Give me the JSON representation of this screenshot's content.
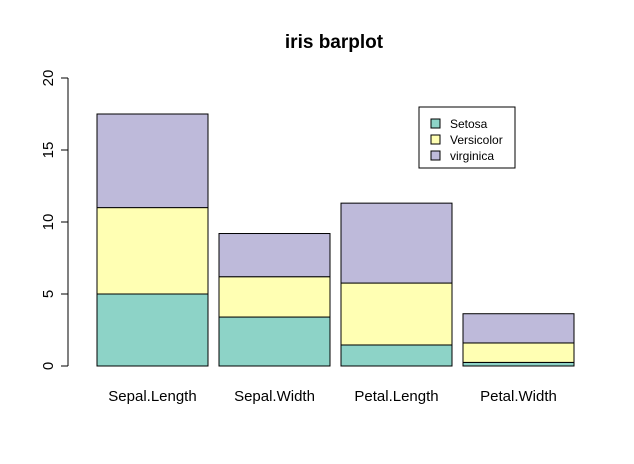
{
  "chart_data": {
    "type": "bar",
    "stacked": true,
    "title": "iris barplot",
    "xlabel": "",
    "ylabel": "",
    "ylim": [
      0,
      20
    ],
    "yticks": [
      0,
      5,
      10,
      15,
      20
    ],
    "categories": [
      "Sepal.Length",
      "Sepal.Width",
      "Petal.Length",
      "Petal.Width"
    ],
    "series": [
      {
        "name": "Setosa",
        "color": "#8DD3C7",
        "values": [
          5.0,
          3.4,
          1.46,
          0.25
        ]
      },
      {
        "name": "Versicolor",
        "color": "#FFFFB3",
        "values": [
          6.0,
          2.8,
          4.3,
          1.35
        ]
      },
      {
        "name": "virginica",
        "color": "#BEBADA",
        "values": [
          6.5,
          3.0,
          5.55,
          2.03
        ]
      }
    ],
    "legend_position": "top-right",
    "grid": false
  }
}
